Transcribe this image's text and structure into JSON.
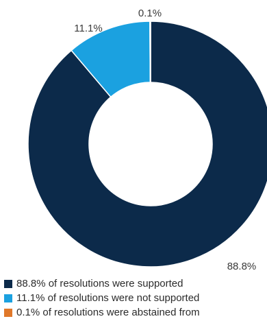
{
  "chart_data": {
    "type": "pie",
    "donut": true,
    "slices": [
      {
        "value": 88.8,
        "label": "88.8%",
        "color": "#0c2a4a"
      },
      {
        "value": 11.1,
        "label": "11.1%",
        "color": "#1ba1e0"
      },
      {
        "value": 0.1,
        "label": "0.1%",
        "color": "#e0782a"
      }
    ],
    "legend": [
      {
        "text": "88.8% of resolutions were supported",
        "color": "#0c2a4a"
      },
      {
        "text": "11.1% of resolutions were not supported",
        "color": "#1ba1e0"
      },
      {
        "text": "0.1% of resolutions were abstained from",
        "color": "#e0782a"
      }
    ],
    "legend_position": "bottom-left"
  }
}
